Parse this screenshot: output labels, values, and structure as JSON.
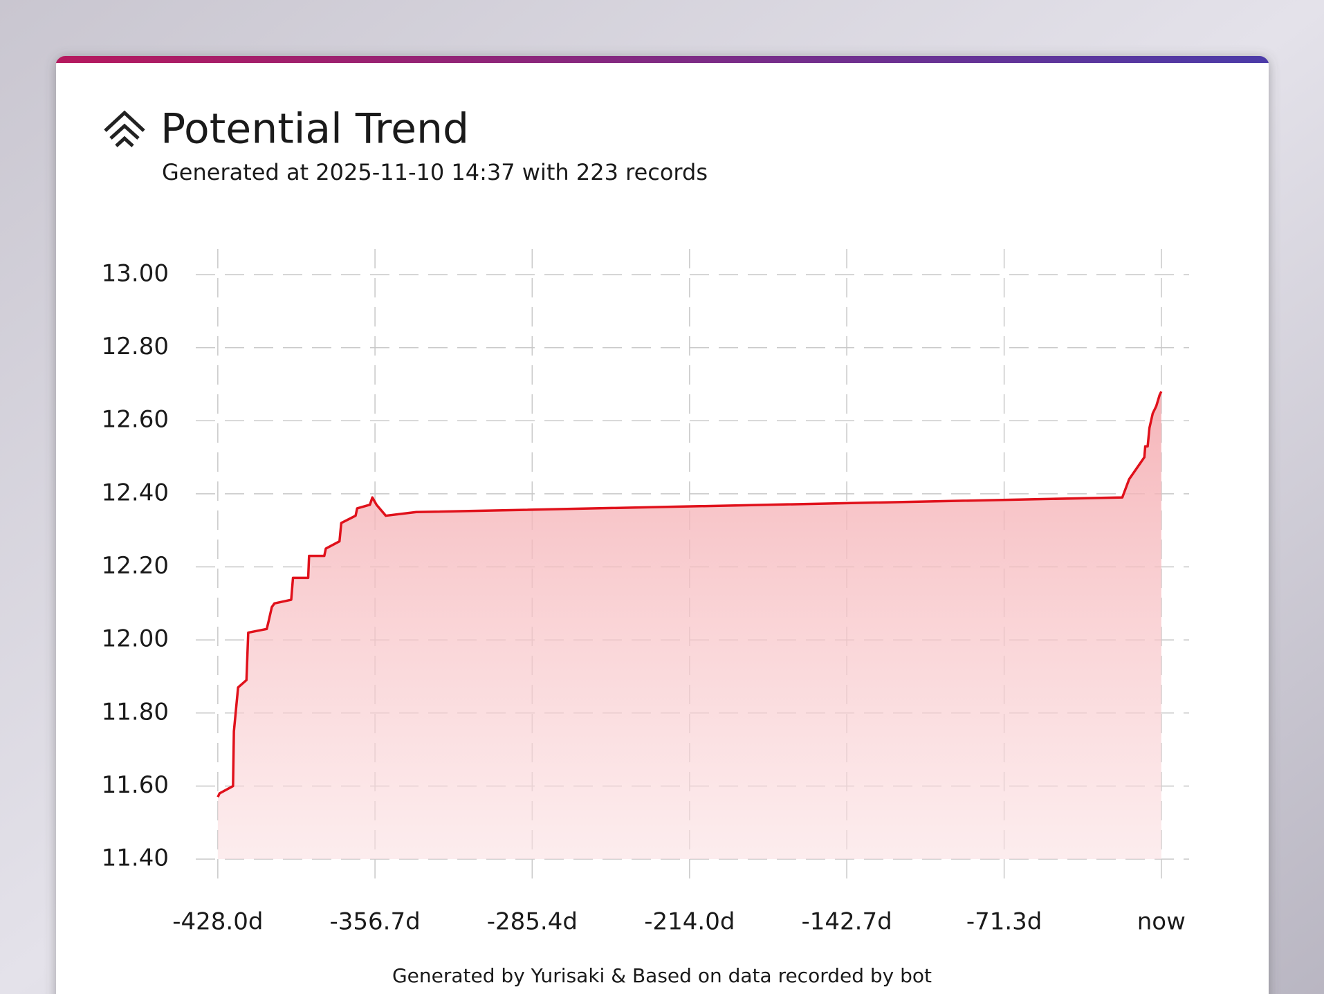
{
  "chart_data": {
    "type": "area",
    "title": "Potential Trend",
    "subtitle": "Generated at 2025-11-10 14:37 with 223 records",
    "footer": "Generated by Yurisaki & Based on data recorded by bot",
    "color": "#e0111b",
    "grid": true,
    "x": [
      -428.0,
      -427.2,
      -421.1,
      -420.7,
      -418.8,
      -415.0,
      -414.2,
      -405.8,
      -405.0,
      -403.5,
      -402.3,
      -394.7,
      -393.9,
      -387.0,
      -386.6,
      -379.7,
      -379.0,
      -372.8,
      -372.0,
      -365.5,
      -364.8,
      -359.0,
      -357.9,
      -356.0,
      -351.8,
      -338.0,
      -17.7,
      -14.6,
      -7.7,
      -7.3,
      -6.2,
      -5.4,
      -3.9,
      -2.3,
      -0.8,
      0.0
    ],
    "values": [
      11.57,
      11.58,
      11.6,
      11.75,
      11.87,
      11.89,
      12.02,
      12.03,
      12.05,
      12.09,
      12.1,
      12.11,
      12.17,
      12.17,
      12.23,
      12.23,
      12.25,
      12.27,
      12.32,
      12.34,
      12.36,
      12.37,
      12.39,
      12.37,
      12.34,
      12.35,
      12.39,
      12.44,
      12.5,
      12.53,
      12.53,
      12.58,
      12.62,
      12.64,
      12.67,
      12.68
    ],
    "xlim": [
      -438,
      12.6
    ],
    "ylim": [
      11.33,
      13.07
    ],
    "xticks": [
      {
        "value": -428.0,
        "label": "-428.0d"
      },
      {
        "value": -356.7,
        "label": "-356.7d"
      },
      {
        "value": -285.4,
        "label": "-285.4d"
      },
      {
        "value": -214.0,
        "label": "-214.0d"
      },
      {
        "value": -142.7,
        "label": "-142.7d"
      },
      {
        "value": -71.3,
        "label": "-71.3d"
      },
      {
        "value": 0,
        "label": "now"
      }
    ],
    "yticks": [
      {
        "value": 11.4,
        "label": "11.40"
      },
      {
        "value": 11.6,
        "label": "11.60"
      },
      {
        "value": 11.8,
        "label": "11.80"
      },
      {
        "value": 12.0,
        "label": "12.00"
      },
      {
        "value": 12.2,
        "label": "12.20"
      },
      {
        "value": 12.4,
        "label": "12.40"
      },
      {
        "value": 12.6,
        "label": "12.60"
      },
      {
        "value": 12.8,
        "label": "12.80"
      },
      {
        "value": 13.0,
        "label": "13.00"
      }
    ]
  }
}
